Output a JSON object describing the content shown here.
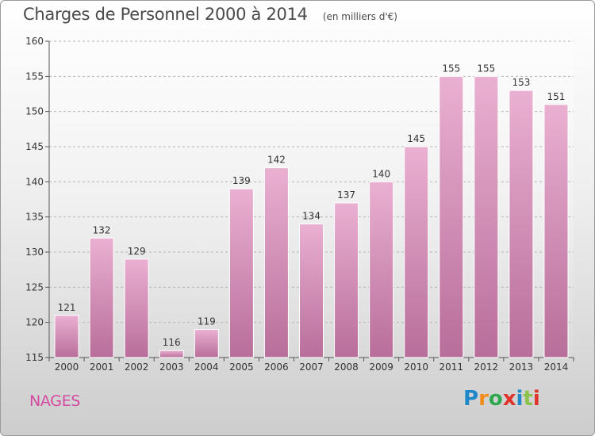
{
  "page": {
    "title": "Charges de Personnel 2000 à 2014",
    "subtitle": "(en milliers d'€)",
    "town": "NAGES",
    "logo": {
      "text": "Proxiti",
      "colors": [
        "#1e88c8",
        "#f28c1b",
        "#2fa84f",
        "#e0332b",
        "#1e88c8",
        "#8bc34a",
        "#e0332b"
      ]
    }
  },
  "chart_data": {
    "type": "bar",
    "title": "Charges de Personnel 2000 à 2014",
    "subtitle": "(en milliers d'€)",
    "xlabel": "",
    "ylabel": "",
    "categories": [
      "2000",
      "2001",
      "2002",
      "2003",
      "2004",
      "2005",
      "2006",
      "2007",
      "2008",
      "2009",
      "2010",
      "2011",
      "2012",
      "2013",
      "2014"
    ],
    "values": [
      121,
      132,
      129,
      116,
      119,
      139,
      142,
      134,
      137,
      140,
      145,
      155,
      155,
      153,
      151
    ],
    "ylim": [
      115,
      160
    ],
    "yticks": [
      115,
      120,
      125,
      130,
      135,
      140,
      145,
      150,
      155,
      160
    ],
    "grid": "horizontal dashed",
    "legend": "none",
    "bar_color": "#d98ab8"
  }
}
